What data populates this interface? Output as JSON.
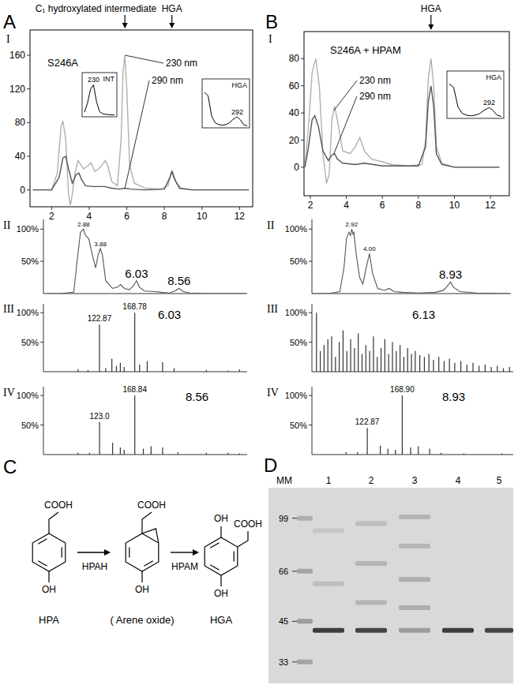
{
  "panel_labels": [
    "A",
    "B",
    "C",
    "D"
  ],
  "chart_data": [
    {
      "type": "line",
      "label": "I",
      "title": "S246A",
      "series": [
        {
          "name": "230 nm",
          "color": "#b0b0b0",
          "x": [
            1.0,
            2.0,
            2.3,
            2.5,
            2.6,
            2.75,
            2.9,
            3.0,
            3.1,
            3.25,
            3.4,
            3.55,
            3.7,
            3.9,
            4.1,
            4.3,
            4.5,
            4.7,
            4.85,
            5.0,
            5.2,
            5.5,
            5.7,
            5.8,
            5.9,
            6.0,
            6.15,
            6.4,
            7.0,
            7.8,
            8.2,
            8.35,
            8.45,
            8.6,
            8.9,
            9.5,
            10.5,
            11.5,
            12.5
          ],
          "values": [
            0,
            0,
            20,
            75,
            82,
            60,
            -5,
            -18,
            -5,
            20,
            35,
            30,
            25,
            28,
            32,
            22,
            25,
            30,
            35,
            28,
            10,
            5,
            60,
            140,
            160,
            120,
            30,
            8,
            2,
            1,
            5,
            20,
            22,
            10,
            2,
            0,
            0,
            0,
            0
          ]
        },
        {
          "name": "290 nm",
          "color": "#555555",
          "x": [
            1.0,
            2.0,
            2.4,
            2.6,
            2.75,
            2.9,
            3.1,
            3.3,
            3.45,
            3.6,
            3.8,
            4.2,
            4.8,
            5.2,
            5.6,
            5.9,
            6.2,
            7.0,
            8.0,
            8.3,
            8.4,
            8.5,
            8.8,
            9.5,
            12.5
          ],
          "values": [
            0,
            0,
            15,
            38,
            40,
            25,
            8,
            18,
            20,
            12,
            5,
            4,
            4,
            2,
            1,
            2,
            1,
            0,
            1,
            15,
            22,
            15,
            2,
            0,
            0
          ]
        }
      ],
      "xlim": [
        0.85,
        12.7
      ],
      "ylim": [
        -20,
        190
      ],
      "xticks": [
        2,
        4,
        6,
        8,
        10,
        12
      ],
      "yticks": [
        0,
        40,
        80,
        120,
        160
      ],
      "arrows": [
        {
          "value": 5.9,
          "label": "C₁ hydroxylated intermediate"
        },
        {
          "value": 8.4,
          "label": "HGA"
        }
      ],
      "insets": [
        {
          "name": "INT",
          "peak": 230,
          "x": [
            200,
            210,
            220,
            230,
            240,
            250,
            260,
            270,
            280,
            290,
            300
          ],
          "values": [
            0.1,
            0.4,
            0.85,
            1.0,
            0.45,
            0.12,
            0.05,
            0.03,
            0.02,
            0.01,
            0.01
          ],
          "xlim": [
            200,
            300
          ],
          "ylim": [
            0,
            1.35
          ]
        },
        {
          "name": "HGA",
          "peak": 292,
          "x": [
            200,
            210,
            220,
            230,
            240,
            250,
            260,
            270,
            280,
            292,
            300,
            310,
            320
          ],
          "values": [
            1.0,
            0.9,
            0.3,
            0.1,
            0.05,
            0.03,
            0.05,
            0.1,
            0.2,
            0.28,
            0.2,
            0.05,
            0.01
          ],
          "xlim": [
            200,
            320
          ],
          "ylim": [
            0,
            1.35
          ]
        }
      ]
    },
    {
      "type": "line",
      "label": "II",
      "color": "#555555",
      "x": [
        0.7,
        1.5,
        2.3,
        2.5,
        2.7,
        2.88,
        3.0,
        3.2,
        3.4,
        3.6,
        3.75,
        3.88,
        4.0,
        4.2,
        4.6,
        4.9,
        5.08,
        5.3,
        5.6,
        5.85,
        6.03,
        6.2,
        6.5,
        7.15,
        7.5,
        8.0,
        8.3,
        8.56,
        8.8,
        9.2,
        10,
        11,
        12.5
      ],
      "values": [
        0,
        0,
        2,
        50,
        95,
        100,
        90,
        85,
        60,
        40,
        60,
        70,
        60,
        20,
        8,
        10,
        14,
        8,
        6,
        12,
        20,
        10,
        4,
        3,
        2,
        1,
        4,
        8,
        3,
        1,
        0,
        0,
        0
      ],
      "xlim": [
        0.5,
        12.6
      ],
      "ylim": [
        0,
        115
      ],
      "yticks": [
        {
          "value": 50,
          "label": "50%"
        },
        {
          "value": 100,
          "label": "100%"
        }
      ],
      "annotations": [
        {
          "value": 6.03,
          "label": "6.03"
        },
        {
          "value": 8.56,
          "label": "8.56"
        }
      ],
      "peak_labels": [
        {
          "value": 2.88,
          "label": "2.88"
        },
        {
          "value": 3.88,
          "label": "3.88"
        }
      ]
    },
    {
      "type": "bar",
      "label": "III",
      "title": "6.03",
      "color": "#333333",
      "x": [
        95,
        108,
        122.87,
        131,
        139,
        145,
        150,
        155,
        168.78,
        175,
        185,
        205,
        220,
        262,
        290,
        305
      ],
      "values": [
        4,
        3,
        80,
        6,
        22,
        10,
        15,
        8,
        100,
        12,
        18,
        16,
        6,
        3,
        2,
        4
      ],
      "xlim": [
        50,
        315
      ],
      "ylim": [
        0,
        115
      ],
      "yticks": [
        {
          "value": 50,
          "label": "50%"
        },
        {
          "value": 100,
          "label": "100%"
        }
      ],
      "annotations": [
        {
          "value": 122.87,
          "label": "122.87"
        },
        {
          "value": 168.78,
          "label": "168.78"
        }
      ]
    },
    {
      "type": "bar",
      "label": "IV",
      "title": "8.56",
      "color": "#333333",
      "x": [
        95,
        110,
        123.0,
        140,
        150,
        155,
        168.84,
        180,
        190,
        205,
        225,
        262,
        290,
        305
      ],
      "values": [
        3,
        3,
        55,
        20,
        12,
        8,
        100,
        10,
        14,
        12,
        4,
        3,
        3,
        2
      ],
      "xlim": [
        50,
        315
      ],
      "ylim": [
        0,
        115
      ],
      "yticks": [
        {
          "value": 50,
          "label": "50%"
        },
        {
          "value": 100,
          "label": "100%"
        }
      ],
      "annotations": [
        {
          "value": 123.0,
          "label": "123.0"
        },
        {
          "value": 168.84,
          "label": "168.84"
        }
      ]
    },
    {
      "type": "line",
      "label": "I",
      "title": "S246A + HPAM",
      "series": [
        {
          "name": "230 nm",
          "color": "#b0b0b0",
          "x": [
            1.7,
            1.9,
            2.1,
            2.3,
            2.5,
            2.7,
            2.9,
            3.05,
            3.2,
            3.35,
            3.5,
            3.8,
            4.2,
            4.5,
            4.75,
            5.0,
            5.4,
            6.0,
            6.5,
            7.5,
            8.2,
            8.4,
            8.55,
            8.7,
            8.85,
            9.0,
            9.3,
            10,
            12.5
          ],
          "values": [
            0,
            30,
            70,
            80,
            60,
            10,
            -12,
            -5,
            35,
            45,
            35,
            12,
            10,
            15,
            22,
            12,
            6,
            4,
            2,
            1,
            2,
            20,
            65,
            80,
            60,
            15,
            3,
            0,
            0
          ]
        },
        {
          "name": "290 nm",
          "color": "#555555",
          "x": [
            1.7,
            1.9,
            2.1,
            2.25,
            2.45,
            2.7,
            3.0,
            3.2,
            3.35,
            3.5,
            3.8,
            4.5,
            5.0,
            6.0,
            8.0,
            8.4,
            8.55,
            8.7,
            8.85,
            9.0,
            9.3,
            10,
            12.5
          ],
          "values": [
            0,
            15,
            35,
            38,
            30,
            12,
            5,
            9,
            10,
            6,
            3,
            2,
            3,
            1,
            1,
            15,
            48,
            60,
            45,
            10,
            2,
            0,
            0
          ]
        }
      ],
      "xlim": [
        1.65,
        13.05
      ],
      "ylim": [
        -21,
        100
      ],
      "xticks": [
        2,
        4,
        6,
        8,
        10,
        12
      ],
      "yticks": [
        0,
        20,
        40,
        60,
        80
      ],
      "arrows": [
        {
          "value": 8.7,
          "label": "HGA"
        }
      ],
      "insets": [
        {
          "name": "HGA",
          "peak": 292,
          "x": [
            200,
            210,
            220,
            230,
            240,
            250,
            260,
            270,
            280,
            292,
            300,
            310,
            320
          ],
          "values": [
            1.0,
            0.9,
            0.3,
            0.1,
            0.05,
            0.03,
            0.05,
            0.1,
            0.2,
            0.28,
            0.2,
            0.05,
            0.01
          ],
          "xlim": [
            200,
            320
          ],
          "ylim": [
            0,
            1.35
          ]
        }
      ]
    },
    {
      "type": "line",
      "label": "II",
      "color": "#555555",
      "x": [
        0.5,
        1.5,
        2.2,
        2.45,
        2.6,
        2.75,
        2.85,
        2.92,
        3.0,
        3.05,
        3.2,
        3.4,
        3.6,
        3.8,
        4.0,
        4.2,
        4.5,
        4.9,
        5.2,
        5.5,
        6.0,
        7.0,
        8.0,
        8.5,
        8.75,
        8.93,
        9.1,
        9.5,
        10.5,
        12.5
      ],
      "values": [
        0,
        0,
        3,
        40,
        85,
        95,
        90,
        100,
        92,
        95,
        60,
        25,
        15,
        40,
        62,
        30,
        8,
        5,
        8,
        3,
        2,
        1,
        2,
        5,
        12,
        18,
        10,
        3,
        1,
        0
      ],
      "xlim": [
        0.5,
        12.6
      ],
      "ylim": [
        0,
        115
      ],
      "yticks": [
        {
          "value": 50,
          "label": "50%"
        },
        {
          "value": 100,
          "label": "100%"
        }
      ],
      "annotations": [
        {
          "value": 8.93,
          "label": "8.93"
        }
      ],
      "peak_labels": [
        {
          "value": 2.92,
          "label": "2.92"
        },
        {
          "value": 4.0,
          "label": "4.00"
        }
      ]
    },
    {
      "type": "bar",
      "label": "III",
      "title": "6.13",
      "color": "#333333",
      "x": [
        56,
        61,
        66,
        71,
        76,
        81,
        86,
        91,
        96,
        101,
        106,
        111,
        116,
        121,
        126,
        131,
        136,
        141,
        146,
        151,
        156,
        161,
        166,
        171,
        176,
        181,
        186,
        192,
        198,
        204,
        210,
        217,
        224,
        231,
        238,
        246,
        254,
        262,
        270,
        278,
        286,
        294,
        302,
        310
      ],
      "values": [
        100,
        35,
        45,
        55,
        60,
        25,
        50,
        70,
        35,
        55,
        40,
        65,
        30,
        45,
        35,
        60,
        25,
        40,
        55,
        30,
        50,
        35,
        45,
        25,
        40,
        30,
        35,
        28,
        25,
        30,
        20,
        25,
        18,
        22,
        15,
        18,
        12,
        15,
        10,
        12,
        8,
        10,
        6,
        8
      ],
      "xlim": [
        50,
        315
      ],
      "ylim": [
        0,
        115
      ],
      "yticks": [
        {
          "value": 50,
          "label": "50%"
        },
        {
          "value": 100,
          "label": "100%"
        }
      ]
    },
    {
      "type": "bar",
      "label": "IV",
      "title": "8.93",
      "color": "#333333",
      "x": [
        95,
        110,
        122.87,
        140,
        150,
        160,
        168.9,
        180,
        190,
        205,
        220,
        250,
        300
      ],
      "values": [
        4,
        4,
        45,
        15,
        10,
        8,
        100,
        12,
        14,
        10,
        3,
        2,
        2
      ],
      "xlim": [
        50,
        315
      ],
      "ylim": [
        0,
        115
      ],
      "yticks": [
        {
          "value": 50,
          "label": "50%"
        },
        {
          "value": 100,
          "label": "100%"
        }
      ],
      "annotations": [
        {
          "value": 122.87,
          "label": "122.87"
        },
        {
          "value": 168.9,
          "label": "168.90"
        }
      ]
    }
  ],
  "scheme": {
    "compounds": [
      {
        "name": "HPA",
        "groups": [
          "COOH",
          "OH"
        ]
      },
      {
        "name": "( Arene oxide)",
        "groups": [
          "COOH",
          "OH"
        ]
      },
      {
        "name": "HGA",
        "groups": [
          "COOH",
          "OH",
          "OH"
        ]
      }
    ],
    "enzymes": [
      "HPAH",
      "HPAM"
    ]
  },
  "gel": {
    "markers": [
      99,
      66,
      45,
      33
    ],
    "ylim": [
      28,
      125
    ],
    "log": true,
    "lanes": [
      {
        "label": "MM",
        "bands": [
          99,
          66,
          45,
          33
        ],
        "intensity": [
          0.25,
          0.3,
          0.35,
          0.3
        ]
      },
      {
        "label": "1",
        "bands": [
          42,
          60,
          90
        ],
        "intensity": [
          0.9,
          0.15,
          0.1
        ]
      },
      {
        "label": "2",
        "bands": [
          42,
          52,
          70,
          95
        ],
        "intensity": [
          0.85,
          0.2,
          0.2,
          0.15
        ]
      },
      {
        "label": "3",
        "bands": [
          42,
          50,
          62,
          80,
          100
        ],
        "intensity": [
          0.35,
          0.25,
          0.25,
          0.2,
          0.2
        ]
      },
      {
        "label": "4",
        "bands": [
          42
        ],
        "intensity": [
          0.9
        ]
      },
      {
        "label": "5",
        "bands": [
          42
        ],
        "intensity": [
          0.85
        ]
      }
    ]
  }
}
